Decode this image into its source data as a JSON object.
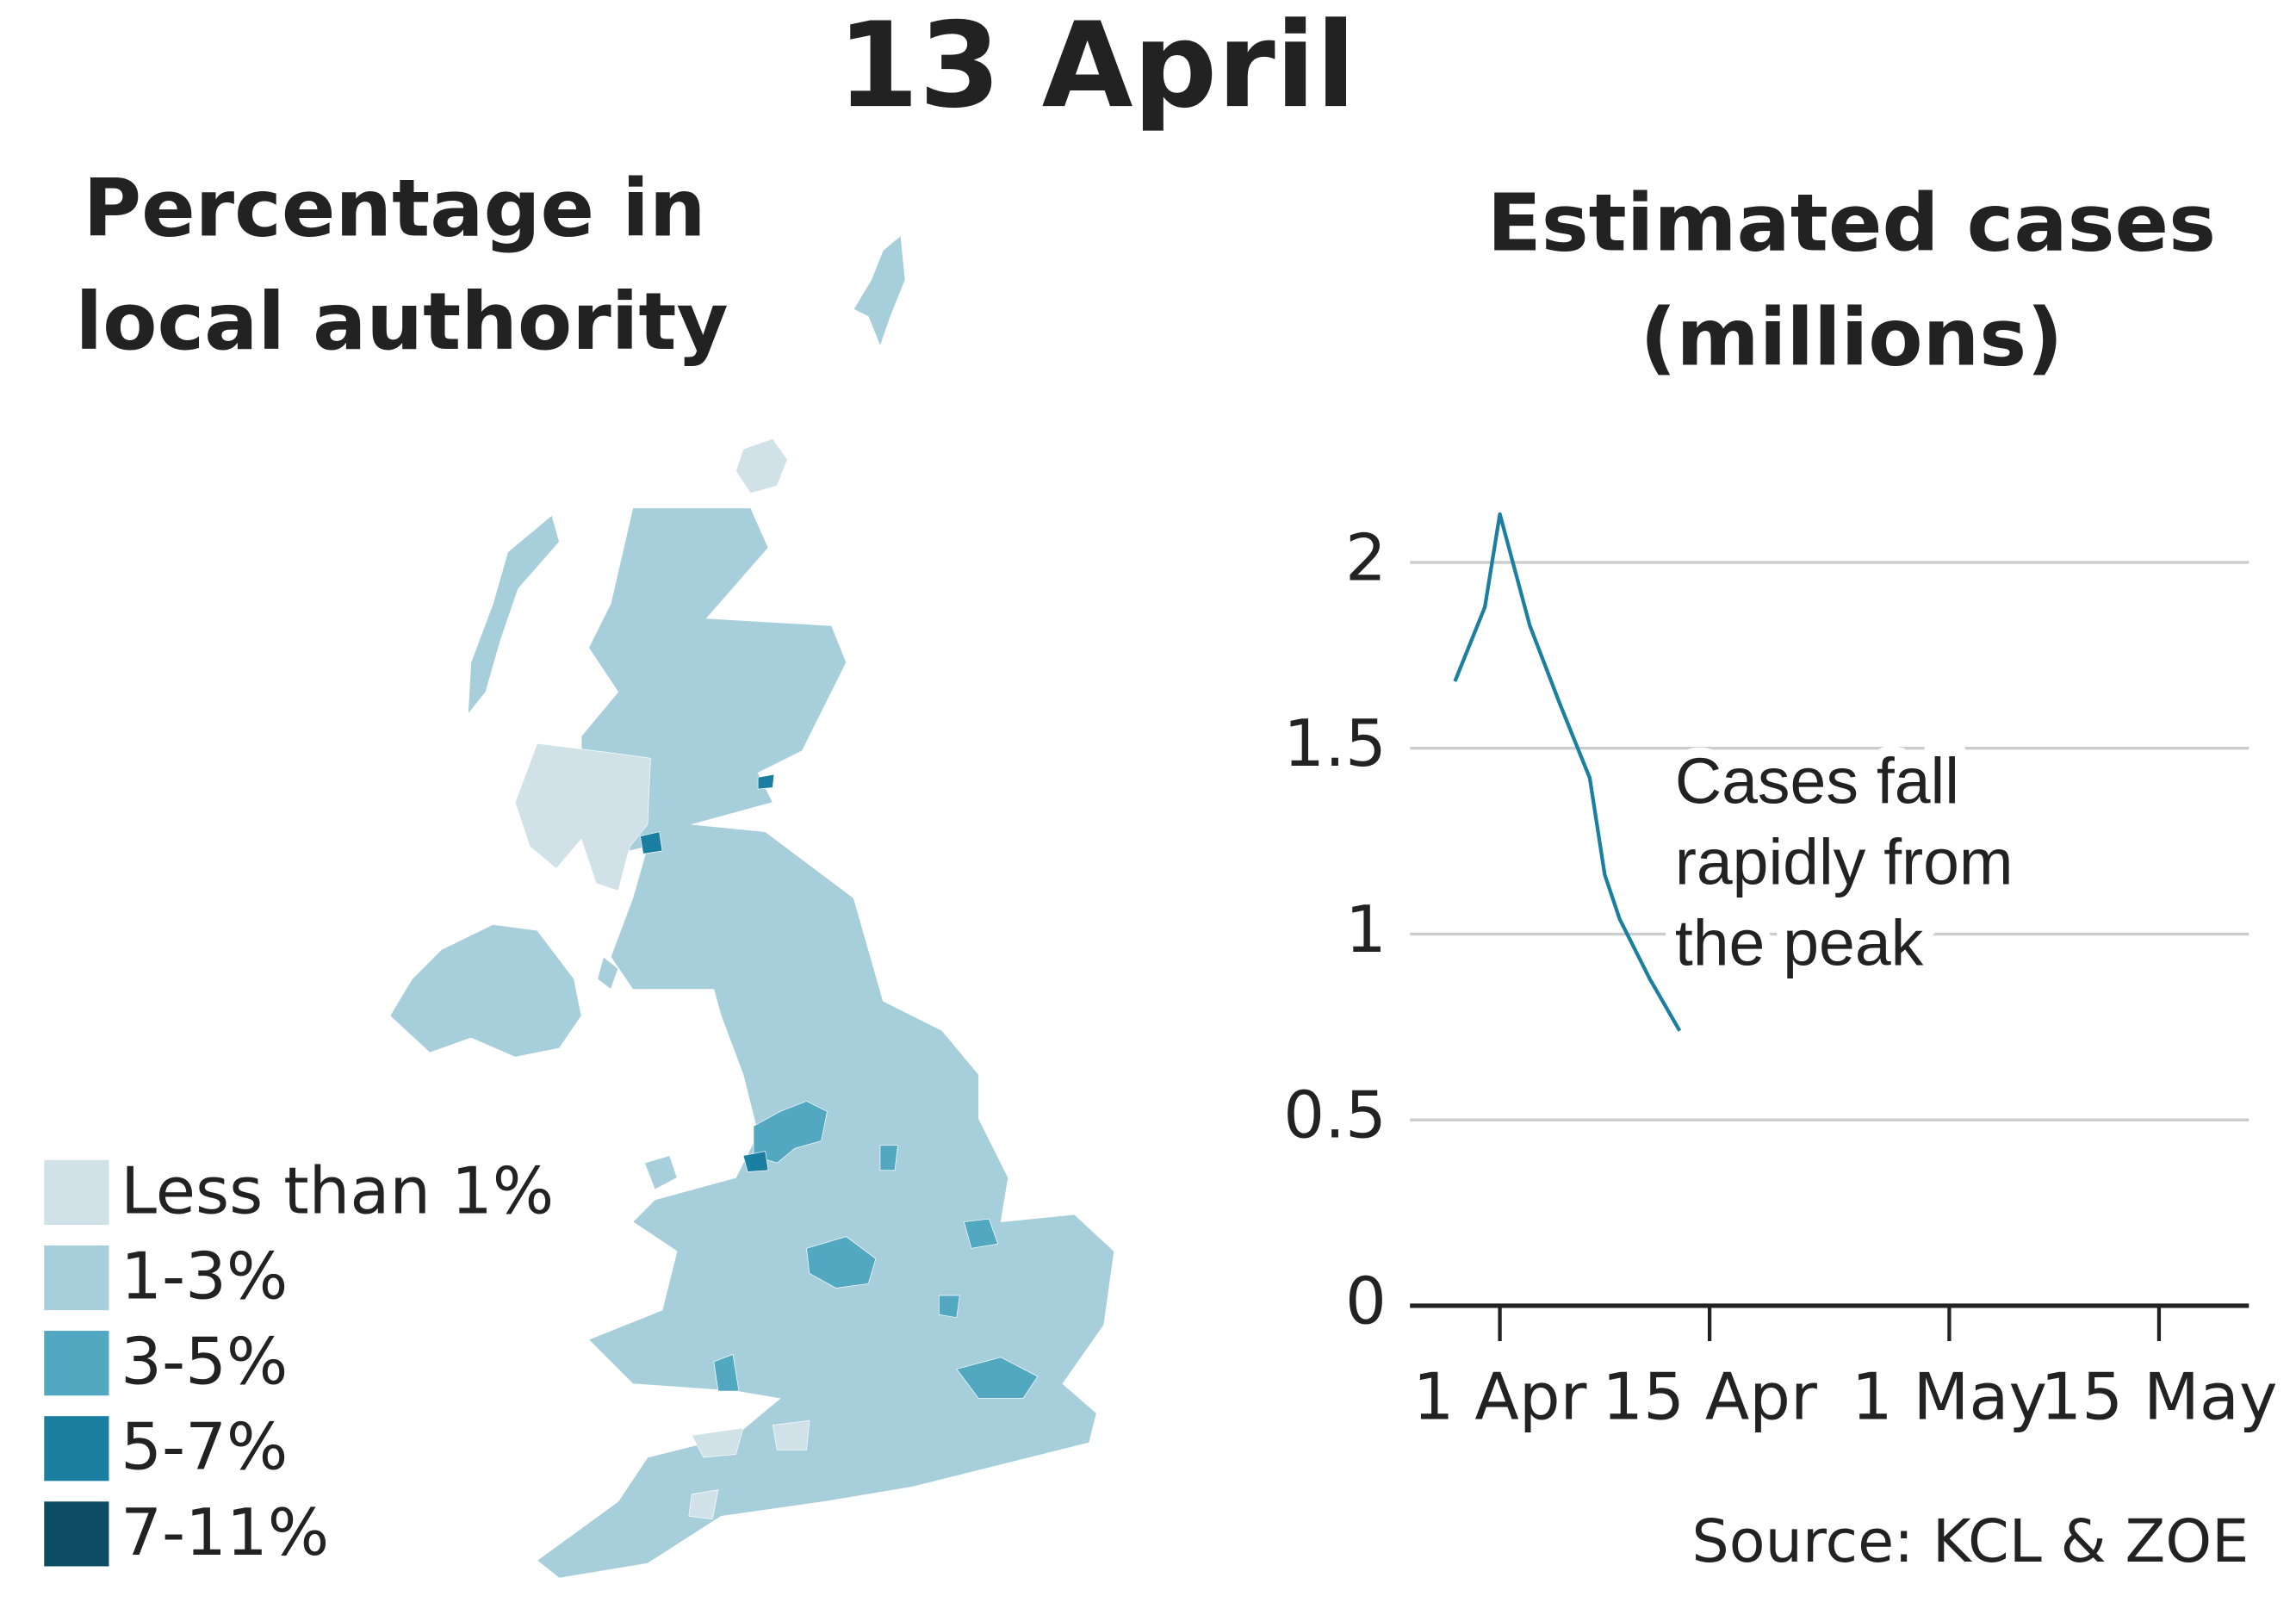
{
  "title": "13 April",
  "map": {
    "title": [
      "Percentage in",
      "local authority"
    ],
    "legend": [
      {
        "label": "Less than 1%",
        "color": "#d0e1e8"
      },
      {
        "label": "1-3%",
        "color": "#a6cedb"
      },
      {
        "label": "3-5%",
        "color": "#52a8c0"
      },
      {
        "label": "5-7%",
        "color": "#1a7fa0"
      },
      {
        "label": "7-11%",
        "color": "#0c4d63"
      }
    ]
  },
  "chart_data": {
    "type": "line",
    "title": [
      "Estimated cases",
      "(millions)"
    ],
    "x": [
      "03-29",
      "03-31",
      "04-01",
      "04-03",
      "04-05",
      "04-07",
      "04-08",
      "04-09",
      "04-11",
      "04-13"
    ],
    "values": [
      1.68,
      1.88,
      2.13,
      1.83,
      1.62,
      1.42,
      1.16,
      1.04,
      0.88,
      0.74
    ],
    "color": "#1a7fa0",
    "xlim": [
      "03-26",
      "05-21"
    ],
    "xticks": [
      {
        "value": "04-01",
        "label": "1 Apr"
      },
      {
        "value": "04-15",
        "label": "15 Apr"
      },
      {
        "value": "05-01",
        "label": "1 May"
      },
      {
        "value": "05-15",
        "label": "15 May"
      }
    ],
    "ylim": [
      0,
      2.2
    ],
    "yticks": [
      0,
      0.5,
      1,
      1.5,
      2
    ],
    "grid": true,
    "annotation": [
      "Cases fall",
      "rapidly from",
      "the peak"
    ],
    "source": "Source: KCL & ZOE"
  }
}
